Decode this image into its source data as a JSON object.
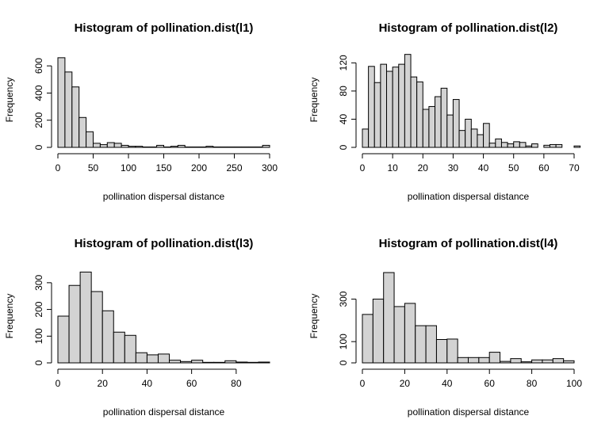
{
  "chart_data": [
    {
      "type": "bar",
      "title": "Histogram of pollination.dist(l1)",
      "xlabel": "pollination dispersal distance",
      "ylabel": "Frequency",
      "xlim": [
        0,
        300
      ],
      "ylim": [
        0,
        700
      ],
      "xticks": [
        0,
        50,
        100,
        150,
        200,
        250,
        300
      ],
      "yticks": [
        0,
        200,
        400,
        600
      ],
      "bin_width": 10,
      "bins_start": [
        0,
        10,
        20,
        30,
        40,
        50,
        60,
        70,
        80,
        90,
        100,
        110,
        120,
        130,
        140,
        150,
        160,
        170,
        180,
        190,
        200,
        210,
        220,
        230,
        240,
        250,
        260,
        270,
        280,
        290
      ],
      "values": [
        660,
        555,
        445,
        220,
        115,
        30,
        20,
        35,
        30,
        15,
        8,
        8,
        3,
        3,
        15,
        3,
        8,
        15,
        3,
        3,
        3,
        8,
        3,
        3,
        3,
        3,
        3,
        3,
        3,
        15
      ]
    },
    {
      "type": "bar",
      "title": "Histogram of pollination.dist(l2)",
      "xlabel": "pollination dispersal distance",
      "ylabel": "Frequency",
      "xlim": [
        0,
        70
      ],
      "ylim": [
        0,
        135
      ],
      "xticks": [
        0,
        10,
        20,
        30,
        40,
        50,
        60,
        70
      ],
      "yticks": [
        0,
        40,
        80,
        120
      ],
      "bin_width": 2,
      "bins_start": [
        0,
        2,
        4,
        6,
        8,
        10,
        12,
        14,
        16,
        18,
        20,
        22,
        24,
        26,
        28,
        30,
        32,
        34,
        36,
        38,
        40,
        42,
        44,
        46,
        48,
        50,
        52,
        54,
        56,
        58,
        60,
        62,
        64,
        66,
        68,
        70
      ],
      "values": [
        26,
        115,
        92,
        118,
        108,
        114,
        118,
        132,
        100,
        93,
        54,
        58,
        72,
        84,
        46,
        68,
        24,
        40,
        26,
        18,
        34,
        6,
        12,
        7,
        5,
        8,
        7,
        2,
        5,
        0,
        3,
        4,
        4,
        0,
        0,
        2
      ]
    },
    {
      "type": "bar",
      "title": "Histogram of pollination.dist(l3)",
      "xlabel": "pollination dispersal distance",
      "ylabel": "Frequency",
      "xlim": [
        0,
        95
      ],
      "ylim": [
        0,
        350
      ],
      "xticks": [
        0,
        20,
        40,
        60,
        80
      ],
      "yticks": [
        0,
        100,
        200,
        300
      ],
      "bin_width": 5,
      "bins_start": [
        0,
        5,
        10,
        15,
        20,
        25,
        30,
        35,
        40,
        45,
        50,
        55,
        60,
        65,
        70,
        75,
        80,
        85,
        90
      ],
      "values": [
        175,
        290,
        340,
        267,
        195,
        115,
        103,
        38,
        30,
        33,
        10,
        5,
        10,
        2,
        2,
        8,
        3,
        2,
        3
      ]
    },
    {
      "type": "bar",
      "title": "Histogram of pollination.dist(l4)",
      "xlabel": "pollination dispersal distance",
      "ylabel": "Frequency",
      "xlim": [
        0,
        100
      ],
      "ylim": [
        0,
        440
      ],
      "xticks": [
        0,
        20,
        40,
        60,
        80,
        100
      ],
      "yticks": [
        0,
        100,
        300
      ],
      "bin_width": 5,
      "bins_start": [
        0,
        5,
        10,
        15,
        20,
        25,
        30,
        35,
        40,
        45,
        50,
        55,
        60,
        65,
        70,
        75,
        80,
        85,
        90,
        95
      ],
      "values": [
        228,
        300,
        425,
        265,
        280,
        175,
        175,
        110,
        112,
        25,
        25,
        25,
        50,
        7,
        20,
        5,
        14,
        14,
        20,
        10
      ]
    }
  ]
}
